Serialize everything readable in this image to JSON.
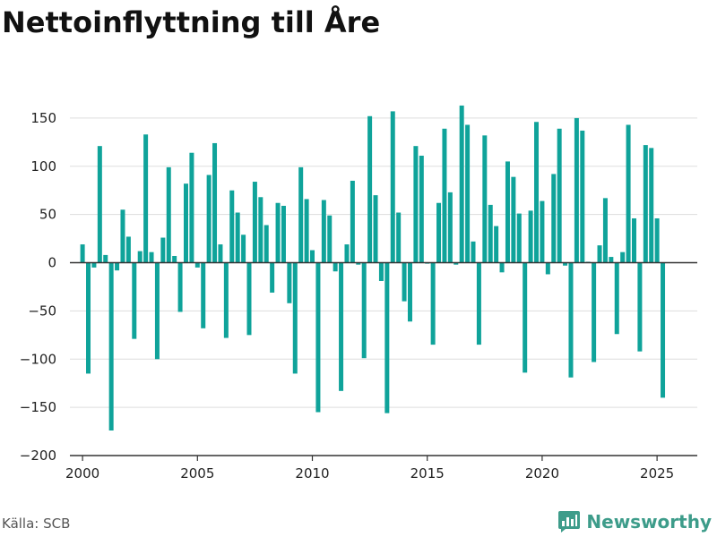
{
  "title": "Nettoinflyttning till Åre",
  "source": "Källa: SCB",
  "brand": {
    "name": "Newsworthy",
    "icon": "newsworthy-logo-icon",
    "color": "#3d9c8a"
  },
  "chart_data": {
    "type": "bar",
    "title": "Nettoinflyttning till Åre",
    "xlabel": "",
    "ylabel": "",
    "bar_color": "#0fa39a",
    "grid": true,
    "xlim": [
      1999.45,
      2026.75
    ],
    "ylim": [
      -200,
      175
    ],
    "x_ticks": [
      2000,
      2005,
      2010,
      2015,
      2020,
      2025
    ],
    "y_ticks": [
      -200,
      -150,
      -100,
      -50,
      0,
      50,
      100,
      150
    ],
    "y_tick_labels": [
      "−200",
      "−150",
      "−100",
      "−50",
      "0",
      "50",
      "100",
      "150"
    ],
    "x": [
      2000.0,
      2000.25,
      2000.5,
      2000.75,
      2001.0,
      2001.25,
      2001.5,
      2001.75,
      2002.0,
      2002.25,
      2002.5,
      2002.75,
      2003.0,
      2003.25,
      2003.5,
      2003.75,
      2004.0,
      2004.25,
      2004.5,
      2004.75,
      2005.0,
      2005.25,
      2005.5,
      2005.75,
      2006.0,
      2006.25,
      2006.5,
      2006.75,
      2007.0,
      2007.25,
      2007.5,
      2007.75,
      2008.0,
      2008.25,
      2008.5,
      2008.75,
      2009.0,
      2009.25,
      2009.5,
      2009.75,
      2010.0,
      2010.25,
      2010.5,
      2010.75,
      2011.0,
      2011.25,
      2011.5,
      2011.75,
      2012.0,
      2012.25,
      2012.5,
      2012.75,
      2013.0,
      2013.25,
      2013.5,
      2013.75,
      2014.0,
      2014.25,
      2014.5,
      2014.75,
      2015.0,
      2015.25,
      2015.5,
      2015.75,
      2016.0,
      2016.25,
      2016.5,
      2016.75,
      2017.0,
      2017.25,
      2017.5,
      2017.75,
      2018.0,
      2018.25,
      2018.5,
      2018.75,
      2019.0,
      2019.25,
      2019.5,
      2019.75,
      2020.0,
      2020.25,
      2020.5,
      2020.75,
      2021.0,
      2021.25,
      2021.5,
      2021.75,
      2022.0,
      2022.25,
      2022.5,
      2022.75,
      2023.0,
      2023.25,
      2023.5,
      2023.75,
      2024.0,
      2024.25,
      2024.5,
      2024.75,
      2025.0,
      2025.25
    ],
    "values": [
      19,
      -115,
      -5,
      121,
      8,
      -174,
      -8,
      55,
      27,
      -79,
      12,
      133,
      11,
      -100,
      26,
      99,
      7,
      -51,
      82,
      114,
      -5,
      -68,
      91,
      124,
      19,
      -78,
      75,
      52,
      29,
      -75,
      84,
      68,
      39,
      -31,
      62,
      59,
      -42,
      -115,
      99,
      66,
      13,
      -155,
      65,
      49,
      -9,
      -133,
      19,
      85,
      -2,
      -99,
      152,
      70,
      -19,
      -156,
      157,
      52,
      -40,
      -61,
      121,
      111,
      -1,
      -85,
      62,
      139,
      73,
      -2,
      163,
      143,
      22,
      -85,
      132,
      60,
      38,
      -10,
      105,
      89,
      51,
      -114,
      54,
      146,
      64,
      -12,
      92,
      139,
      -3,
      -119,
      150,
      137,
      1,
      -103,
      18,
      67,
      6,
      -74,
      11,
      143,
      46,
      -92,
      122,
      119,
      46,
      -140
    ]
  }
}
